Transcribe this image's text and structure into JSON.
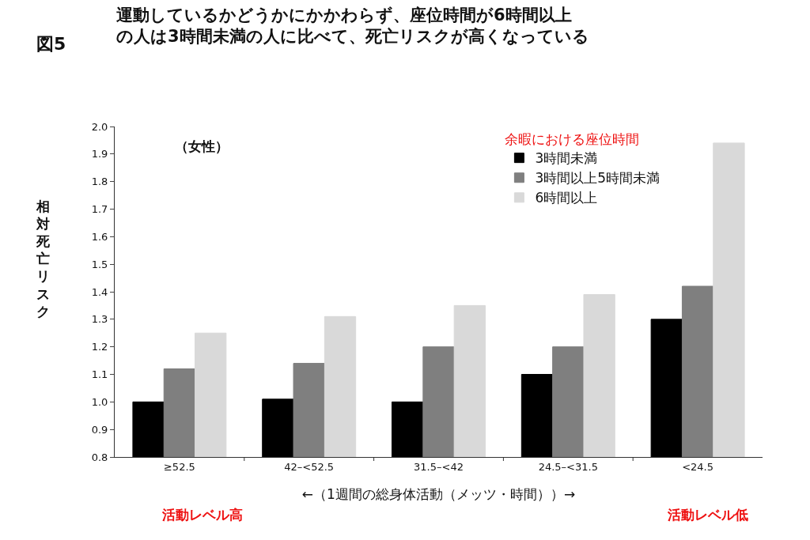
{
  "chart_data": {
    "type": "bar",
    "title": "図5",
    "subtitle": "運動しているかどうかにかかわらず、座位時間が6時間以上の人は3時間未満の人に比べて、死亡リスクが高くなっている",
    "ylabel": "相対死亡リスク",
    "xlabel": "←（1週間の総身体活動（メッツ・時間））→",
    "legend_title": "余暇における座位時間",
    "categories": [
      "≥52.5",
      "42–<52.5",
      "31.5–<42",
      "24.5–<31.5",
      "<24.5"
    ],
    "series": [
      {
        "name": "3時間未満",
        "color": "#000000",
        "values": [
          1.0,
          1.01,
          1.0,
          1.1,
          1.3
        ]
      },
      {
        "name": "3時間以上5時間未満",
        "color": "#7f7f7f",
        "values": [
          1.12,
          1.14,
          1.2,
          1.2,
          1.42
        ]
      },
      {
        "name": "6時間以上",
        "color": "#d9d9d9",
        "values": [
          1.25,
          1.31,
          1.35,
          1.39,
          1.94
        ]
      }
    ],
    "ylim": [
      0.8,
      2.0
    ],
    "yticks": [
      {
        "value": 0.8,
        "label": "0.8"
      },
      {
        "value": 0.9,
        "label": "0.9"
      },
      {
        "value": 1.0,
        "label": "1.0"
      },
      {
        "value": 1.1,
        "label": "1.1"
      },
      {
        "value": 1.2,
        "label": "1.2"
      },
      {
        "value": 1.3,
        "label": "1.3"
      },
      {
        "value": 1.4,
        "label": "1.4"
      },
      {
        "value": 1.5,
        "label": "1.5"
      },
      {
        "value": 1.6,
        "label": "1.6"
      },
      {
        "value": 1.7,
        "label": "1.7"
      },
      {
        "value": 1.8,
        "label": "1.8"
      },
      {
        "value": 1.9,
        "label": "1.9"
      },
      {
        "value": 2.0,
        "label": "2.0"
      }
    ],
    "legend": "top right",
    "annotations": [
      "（女性）",
      "活動レベル高",
      "活動レベル低"
    ]
  }
}
